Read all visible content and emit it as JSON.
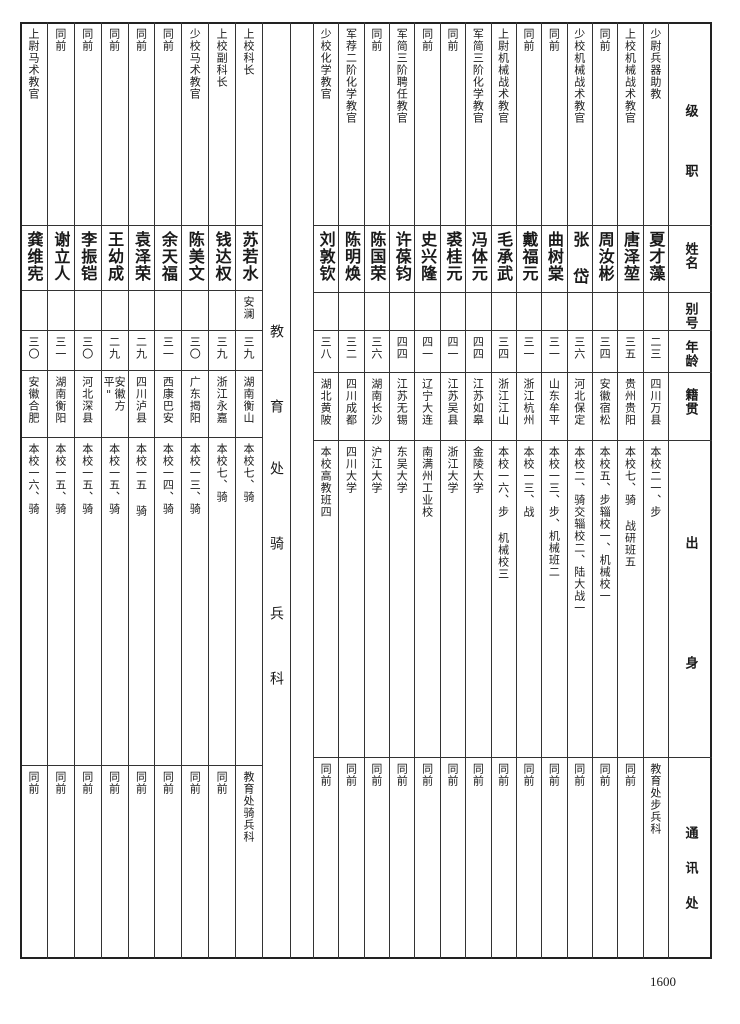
{
  "header": {
    "rank_title": [
      "级",
      "职"
    ],
    "name": "姓名",
    "alias": "别号",
    "age": "年龄",
    "native_place": "籍贯",
    "origin": [
      "出",
      "身"
    ],
    "contact": "通讯处"
  },
  "left_section_label": [
    "教",
    "育",
    "处",
    "骑",
    "兵",
    "科"
  ],
  "right_rows": [
    {
      "title": "少尉兵器助教",
      "name": "夏才藻",
      "alias": "",
      "age": "二三",
      "native": "四川万县",
      "origin": "本校二一、步",
      "contact": "教育处步兵科"
    },
    {
      "title": "上校机械战术教官",
      "name": "唐泽堃",
      "alias": "",
      "age": "三五",
      "native": "贵州贵阳",
      "origin": "本校七、骑 战研班五",
      "contact": "同前"
    },
    {
      "title": "同前",
      "name": "周汝彬",
      "alias": "",
      "age": "三四",
      "native": "安徽宿松",
      "origin": "本校五、步辎校一、机械校一",
      "contact": "同前"
    },
    {
      "title": "少校机械战术教官",
      "name": "张 岱",
      "alias": "",
      "age": "三六",
      "native": "河北保定",
      "origin": "本校二、骑交辎校二、陆大战一",
      "contact": "同前"
    },
    {
      "title": "同前",
      "name": "曲树棠",
      "alias": "",
      "age": "三一",
      "native": "山东牟平",
      "origin": "本校一三、步、机械班二",
      "contact": "同前"
    },
    {
      "title": "同前",
      "name": "戴福元",
      "alias": "",
      "age": "三一",
      "native": "浙江杭州",
      "origin": "本校一三、战",
      "contact": "同前"
    },
    {
      "title": "上尉机械战术教官",
      "name": "毛承武",
      "alias": "",
      "age": "三四",
      "native": "浙江江山",
      "origin": "本校一六、步 机械校三",
      "contact": "同前"
    },
    {
      "title": "军简三阶化学教官",
      "name": "冯体元",
      "alias": "",
      "age": "四四",
      "native": "江苏如皋",
      "origin": "金陵大学",
      "contact": "同前"
    },
    {
      "title": "同前",
      "name": "裘桂元",
      "alias": "",
      "age": "四一",
      "native": "江苏吴县",
      "origin": "浙江大学",
      "contact": "同前"
    },
    {
      "title": "同前",
      "name": "史兴隆",
      "alias": "",
      "age": "四一",
      "native": "辽宁大连",
      "origin": "南满州工业校",
      "contact": "同前"
    },
    {
      "title": "军简三阶聘任教官",
      "name": "许葆钧",
      "alias": "",
      "age": "四四",
      "native": "江苏无锡",
      "origin": "东吴大学",
      "contact": "同前"
    },
    {
      "title": "同前",
      "name": "陈国荣",
      "alias": "",
      "age": "三六",
      "native": "湖南长沙",
      "origin": "沪江大学",
      "contact": "同前"
    },
    {
      "title": "军荐二阶化学教官",
      "name": "陈明焕",
      "alias": "",
      "age": "三二",
      "native": "四川成都",
      "origin": "四川大学",
      "contact": "同前"
    },
    {
      "title": "少校化学教官",
      "name": "刘敦钦",
      "alias": "",
      "age": "三八",
      "native": "湖北黄陂",
      "origin": "本校高教班四",
      "contact": "同前"
    }
  ],
  "left_rows": [
    {
      "title": "上校科长",
      "name": "苏若水",
      "alias": "安澜",
      "age": "三九",
      "native": "湖南衡山",
      "origin": "本校七、骑",
      "contact": "教育处骑兵科"
    },
    {
      "title": "上校副科长",
      "name": "钱达权",
      "alias": "",
      "age": "三九",
      "native": "浙江永嘉",
      "origin": "本校七、骑",
      "contact": "同前"
    },
    {
      "title": "少校马术教官",
      "name": "陈美文",
      "alias": "",
      "age": "三〇",
      "native": "广东揭阳",
      "origin": "本校一三、骑",
      "contact": "同前"
    },
    {
      "title": "同前",
      "name": "余天福",
      "alias": "",
      "age": "三一",
      "native": "西康巴安",
      "origin": "本校一四、骑",
      "contact": "同前"
    },
    {
      "title": "同前",
      "name": "袁泽荣",
      "alias": "",
      "age": "二九",
      "native": "四川泸县",
      "origin": "本校一五 骑",
      "contact": "同前"
    },
    {
      "title": "同前",
      "name": "王幼成",
      "alias": "",
      "age": "二九",
      "native": "安徽方平\"",
      "origin": "本校一五、骑",
      "contact": "同前"
    },
    {
      "title": "同前",
      "name": "李振铠",
      "alias": "",
      "age": "三〇",
      "native": "河北深县",
      "origin": "本校一五、骑",
      "contact": "同前"
    },
    {
      "title": "同前",
      "name": "谢立人",
      "alias": "",
      "age": "三一",
      "native": "湖南衡阳",
      "origin": "本校一五、骑",
      "contact": "同前"
    },
    {
      "title": "上尉马术教官",
      "name": "龚维宪",
      "alias": "",
      "age": "三〇",
      "native": "安徽合肥",
      "origin": "本校一六、骑",
      "contact": "同前"
    }
  ],
  "page_number": "1600"
}
